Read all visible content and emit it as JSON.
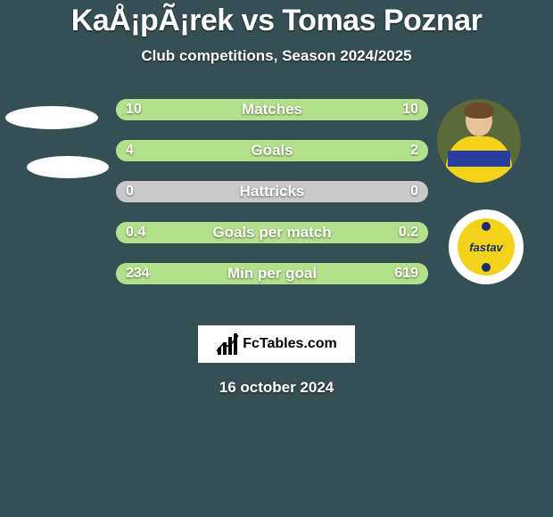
{
  "page": {
    "background_color": "#354f55",
    "text_color": "#ffffff",
    "title": "KaÅ¡pÃ¡rek vs Tomas Poznar",
    "title_fontsize": 34,
    "subtitle": "Club competitions, Season 2024/2025",
    "subtitle_fontsize": 17,
    "footer_date": "16 october 2024",
    "brand_text": "FcTables.com"
  },
  "bars": {
    "track_color": "#c9c9c9",
    "left_fill_color": "#b3e08a",
    "right_fill_color": "#b3e08a",
    "label_color": "#ffffff",
    "label_fontsize": 17,
    "value_fontsize": 16,
    "rows": [
      {
        "label": "Matches",
        "left_value": "10",
        "right_value": "10",
        "left_fill_pct": 50,
        "right_fill_pct": 50
      },
      {
        "label": "Goals",
        "left_value": "4",
        "right_value": "2",
        "left_fill_pct": 66,
        "right_fill_pct": 34
      },
      {
        "label": "Hattricks",
        "left_value": "0",
        "right_value": "0",
        "left_fill_pct": 0,
        "right_fill_pct": 0
      },
      {
        "label": "Goals per match",
        "left_value": "0.4",
        "right_value": "0.2",
        "left_fill_pct": 66,
        "right_fill_pct": 34
      },
      {
        "label": "Min per goal",
        "left_value": "234",
        "right_value": "619",
        "left_fill_pct": 27,
        "right_fill_pct": 73
      }
    ]
  },
  "left_player": {
    "placeholder_fill": "#ffffff"
  },
  "right_player": {
    "photo_bg": "#5a6a3a",
    "jersey_color": "#f3d21a",
    "jersey_stripe": "#2a3ea0",
    "skin": "#e7c29b",
    "hair": "#6b4b2a",
    "club_badge_bg": "#f3d21a",
    "club_badge_text": "fastav",
    "club_badge_accent": "#1a2f6b"
  }
}
